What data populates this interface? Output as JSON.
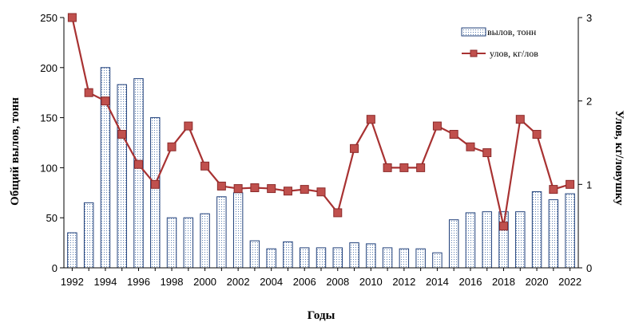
{
  "chart_data": {
    "type": "bar+line",
    "xlabel": "Годы",
    "ylabel_left": "Общий вылов, тонн",
    "ylabel_right": "Улов, кг/ловушку",
    "ylim_left": [
      0,
      250
    ],
    "ylim_right": [
      0,
      3
    ],
    "yticks_left": [
      "0",
      "50",
      "100",
      "150",
      "200",
      "250"
    ],
    "yticks_right": [
      "0",
      "1",
      "2",
      "3"
    ],
    "xtick_labels": [
      "1992",
      "1994",
      "1996",
      "1998",
      "2000",
      "2002",
      "2004",
      "2006",
      "2008",
      "2010",
      "2012",
      "2014",
      "2016",
      "2018",
      "2020",
      "2022"
    ],
    "x": [
      1992,
      1993,
      1994,
      1995,
      1996,
      1997,
      1998,
      1999,
      2000,
      2001,
      2002,
      2003,
      2004,
      2005,
      2006,
      2007,
      2008,
      2009,
      2010,
      2011,
      2012,
      2013,
      2014,
      2015,
      2016,
      2017,
      2018,
      2019,
      2020,
      2021,
      2022
    ],
    "legend_position": "top-right",
    "grid": false,
    "series": [
      {
        "name": "вылов, тонн",
        "kind": "bar",
        "axis": "left",
        "values": [
          35,
          65,
          200,
          183,
          189,
          150,
          50,
          50,
          54,
          71,
          75,
          27,
          19,
          26,
          20,
          20,
          20,
          25,
          24,
          20,
          19,
          19,
          15,
          48,
          55,
          56,
          56,
          56,
          76,
          68,
          74
        ]
      },
      {
        "name": "улов, кг/лов",
        "kind": "line",
        "axis": "right",
        "color": "#a83232",
        "values": [
          3.0,
          2.1,
          2.0,
          1.6,
          1.24,
          1.0,
          1.45,
          1.7,
          1.22,
          0.98,
          0.95,
          0.96,
          0.95,
          0.92,
          0.94,
          0.91,
          0.66,
          1.43,
          1.78,
          1.2,
          1.2,
          1.2,
          1.7,
          1.6,
          1.45,
          1.38,
          0.5,
          1.78,
          1.6,
          0.94,
          1.0
        ]
      }
    ]
  }
}
